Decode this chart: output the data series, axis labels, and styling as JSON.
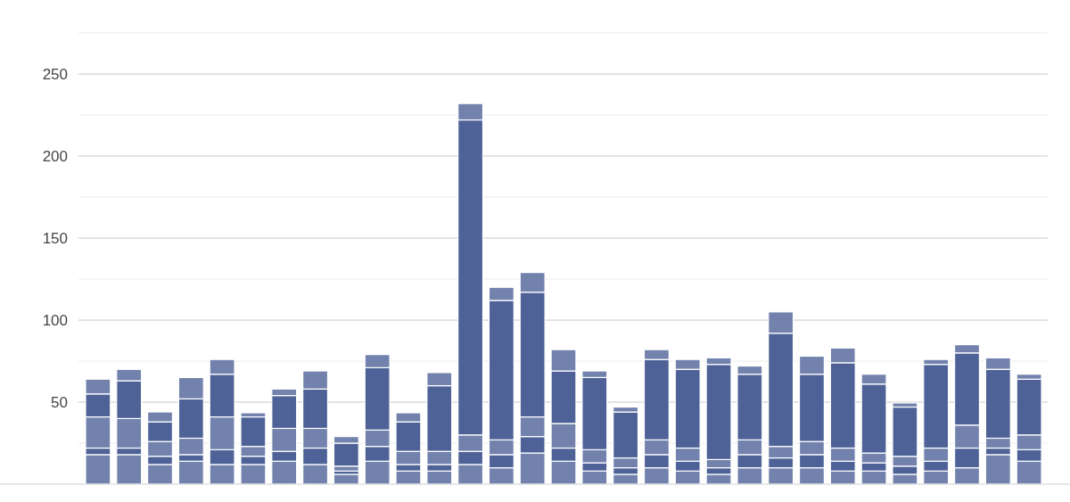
{
  "chart_data": {
    "type": "bar",
    "stacked": true,
    "categories": [
      null,
      null,
      null,
      null,
      null,
      null,
      null,
      null,
      null,
      null,
      null,
      null,
      null,
      null,
      null,
      null,
      null,
      null,
      null,
      null,
      null,
      null,
      null,
      null,
      null,
      null,
      null,
      null,
      null,
      null,
      null
    ],
    "series": [
      {
        "color": "#7282ad",
        "values": [
          18,
          18,
          12,
          14,
          12,
          12,
          14,
          12,
          6,
          14,
          8,
          8,
          12,
          10,
          19,
          14,
          8,
          6,
          10,
          8,
          6,
          10,
          10,
          10,
          8,
          8,
          6,
          8,
          10,
          18,
          14
        ]
      },
      {
        "color": "#4e6297",
        "values": [
          4,
          4,
          5,
          4,
          9,
          5,
          6,
          10,
          2,
          9,
          4,
          4,
          8,
          8,
          10,
          8,
          5,
          4,
          8,
          6,
          4,
          8,
          6,
          8,
          6,
          5,
          5,
          6,
          12,
          4,
          7
        ]
      },
      {
        "color": "#7282ad",
        "values": [
          19,
          18,
          9,
          10,
          20,
          6,
          14,
          12,
          3,
          10,
          8,
          8,
          10,
          9,
          12,
          15,
          8,
          6,
          9,
          8,
          5,
          9,
          7,
          8,
          8,
          6,
          6,
          8,
          14,
          6,
          9
        ]
      },
      {
        "color": "#4e6297",
        "values": [
          14,
          23,
          12,
          24,
          26,
          18,
          20,
          24,
          14,
          38,
          18,
          40,
          192,
          85,
          76,
          32,
          44,
          28,
          49,
          48,
          58,
          40,
          69,
          41,
          52,
          42,
          30,
          51,
          44,
          42,
          34
        ]
      },
      {
        "color": "#7282ad",
        "values": [
          9,
          7,
          6,
          13,
          9,
          2.5,
          4,
          11,
          4,
          8,
          5.5,
          8,
          10,
          8,
          12,
          13,
          4,
          3,
          6,
          6,
          4,
          5,
          13,
          11,
          9,
          6,
          2.5,
          3,
          5,
          7,
          3
        ]
      }
    ],
    "ylim": [
      0,
      275
    ],
    "yticks": [
      {
        "value": 25,
        "label": null
      },
      50,
      {
        "value": 75,
        "label": null
      },
      100,
      {
        "value": 125,
        "label": null
      },
      150,
      {
        "value": 175,
        "label": null
      },
      200,
      {
        "value": 225,
        "label": null
      },
      250,
      {
        "value": 275,
        "label": null
      }
    ],
    "grid": "y"
  }
}
